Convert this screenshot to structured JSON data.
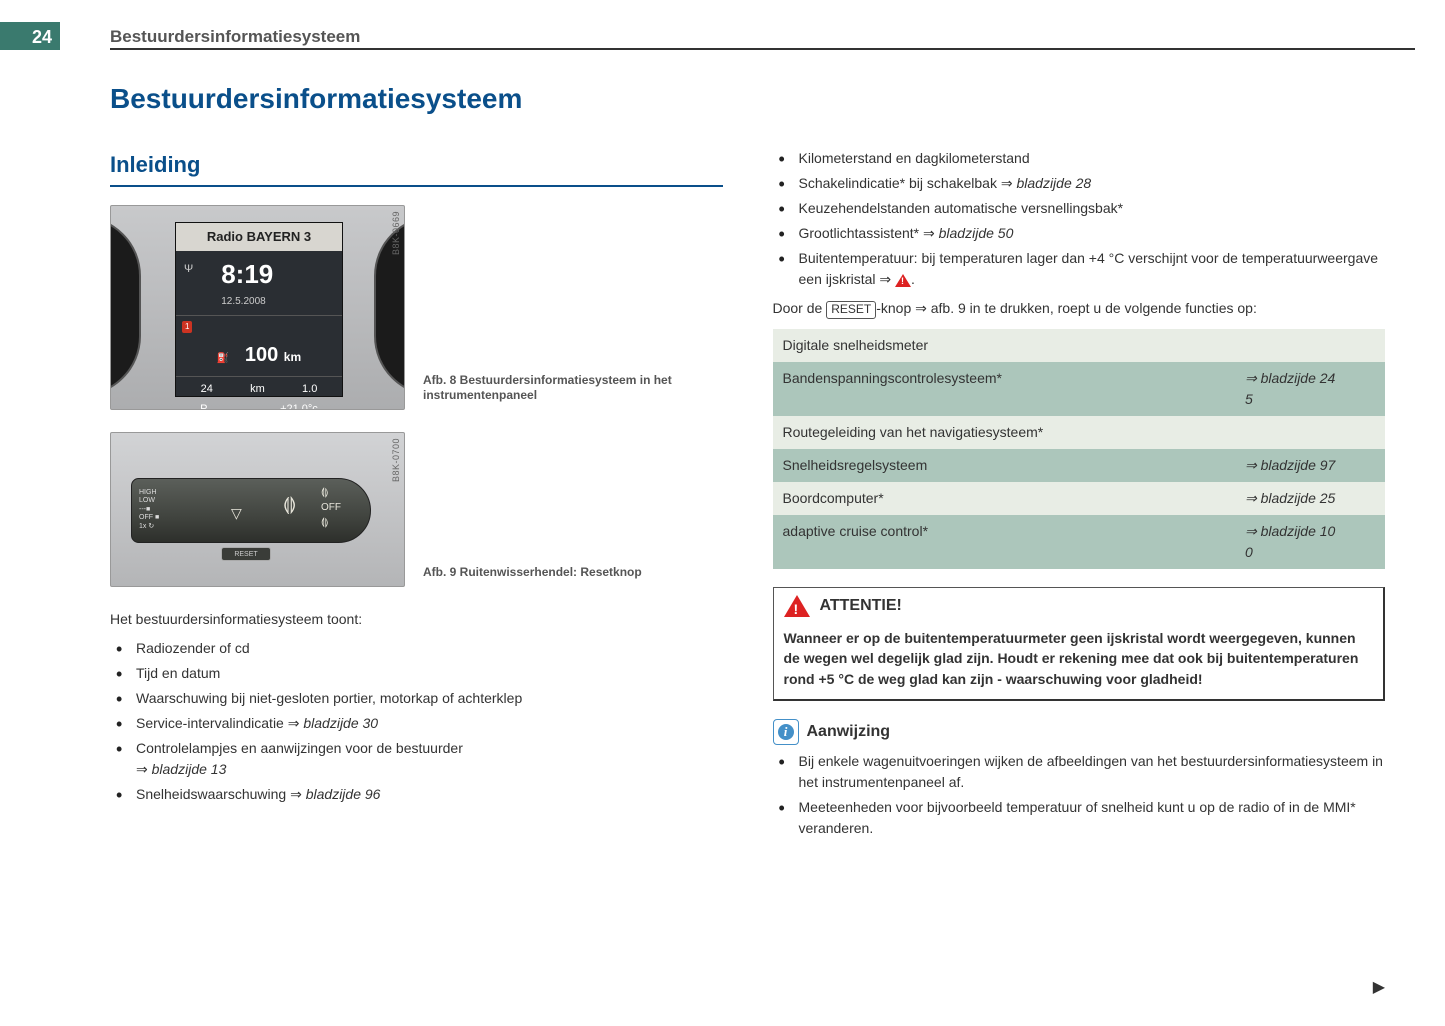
{
  "page_number": "24",
  "header_title": "Bestuurdersinformatiesysteem",
  "h1": "Bestuurdersinformatiesysteem",
  "h2": "Inleiding",
  "fig8": {
    "code": "B8K-0669",
    "caption": "Afb. 8   Bestuurdersinformatiesysteem in het instrumentenpaneel",
    "radio": "Radio BAYERN 3",
    "time": "8:19",
    "date": "12.5.2008",
    "badge": "1",
    "distance_value": "100",
    "distance_unit": "km",
    "b1": "24",
    "b2": "km",
    "b3": "1.0",
    "gear": "P",
    "temp": "+21.0°c"
  },
  "fig9": {
    "code": "B8K-0700",
    "caption": "Afb. 9   Ruitenwisserhendel: Resetknop",
    "high": "HIGH",
    "low": "LOW",
    "off": "OFF",
    "x1": "1x",
    "reset": "RESET"
  },
  "intro_text": "Het bestuurdersinformatiesysteem toont:",
  "left_bullets": [
    "Radiozender of cd",
    "Tijd en datum",
    "Waarschuwing bij niet-gesloten portier, motorkap of achterklep",
    "Service-intervalindicatie ⇒ <i>bladzijde 30</i>",
    "Controlelampjes en aanwijzingen voor de bestuurder<br>⇒ <i>bladzijde 13</i>",
    "Snelheidswaarschuwing ⇒ <i>bladzijde 96</i>"
  ],
  "right_bullets": [
    "Kilometerstand en dagkilometerstand",
    "Schakelindicatie* bij schakelbak ⇒ <i>bladzijde 28</i>",
    "Keuzehendelstanden automatische versnellingsbak*",
    "Grootlichtassistent* ⇒ <i>bladzijde 50</i>",
    "Buitentemperatuur: bij temperaturen lager dan +4 °C verschijnt voor de temperatuurweergave een ijskristal ⇒ <span class=\"warn-tri\"></span>."
  ],
  "reset_sentence_pre": "Door de ",
  "reset_button_label": "RESET",
  "reset_sentence_post": "-knop ⇒ afb. 9 in te drukken, roept u de volgende functies op:",
  "table": {
    "row_colors_alt": [
      "#e8ede5",
      "#acc6bb"
    ],
    "rows": [
      {
        "label": "Digitale snelheidsmeter",
        "ref": ""
      },
      {
        "label": "Bandenspanningscontrolesysteem*",
        "ref": "⇒ bladzijde 245"
      },
      {
        "label": "Routegeleiding van het navigatiesysteem*",
        "ref": ""
      },
      {
        "label": "Snelheidsregelsysteem",
        "ref": "⇒ bladzijde 97"
      },
      {
        "label": "Boordcomputer*",
        "ref": "⇒ bladzijde 25"
      },
      {
        "label": "adaptive cruise control*",
        "ref": "⇒ bladzijde 100"
      }
    ]
  },
  "attention": {
    "title": "ATTENTIE!",
    "body": "Wanneer er op de buitentemperatuurmeter geen ijskristal wordt weergegeven, kunnen de wegen wel degelijk glad zijn. Houdt er rekening mee dat ook bij buitentemperaturen rond +5 °C de weg glad kan zijn - waarschuwing voor gladheid!"
  },
  "note": {
    "title": "Aanwijzing",
    "bullets": [
      "Bij enkele wagenuitvoeringen wijken de afbeeldingen van het bestuurdersinformatiesysteem in het instrumentenpaneel af.",
      "Meeteenheden voor bijvoorbeeld temperatuur of snelheid kunt u op de radio of in de MMI* veranderen."
    ]
  },
  "continue": "▶"
}
